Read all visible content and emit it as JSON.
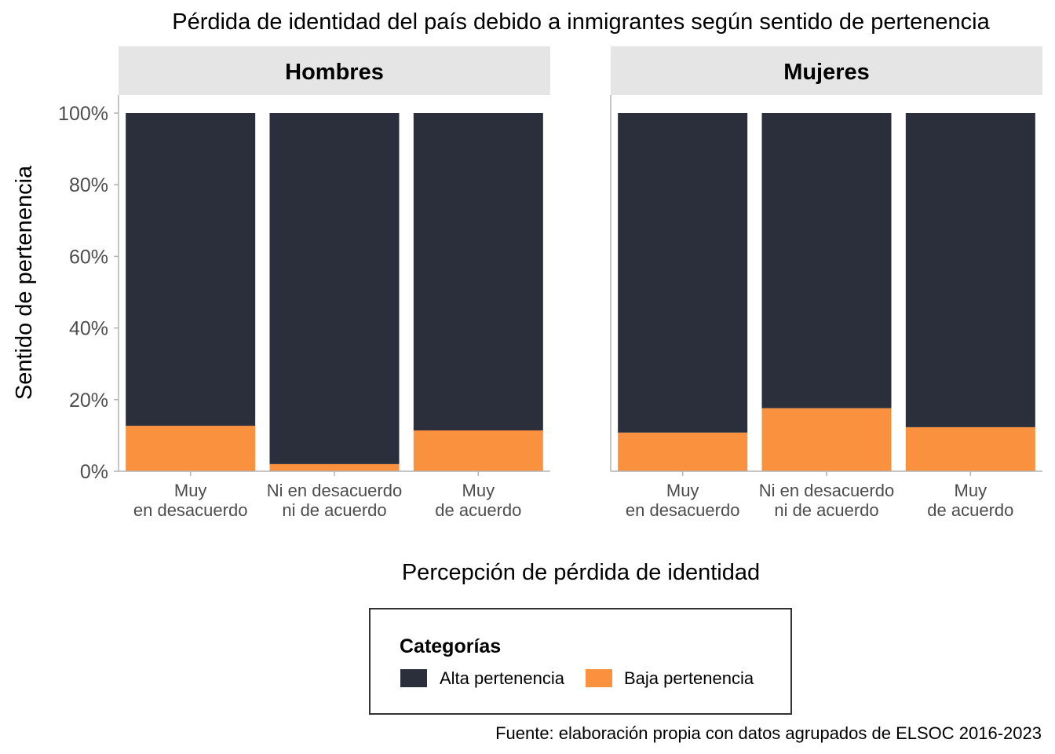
{
  "chart_data": {
    "type": "bar",
    "stacked": "percent",
    "title": "Pérdida de identidad del país debido a inmigrantes según sentido de pertenencia",
    "xlabel": "Percepción de pérdida de identidad",
    "ylabel": "Sentido de pertenencia",
    "ylim": [
      0,
      100
    ],
    "yticks": [
      "0%",
      "20%",
      "40%",
      "60%",
      "80%",
      "100%"
    ],
    "categories": [
      [
        "Muy",
        "en desacuerdo"
      ],
      [
        "Ni en desacuerdo",
        "ni de acuerdo"
      ],
      [
        "Muy",
        "de acuerdo"
      ]
    ],
    "legend": {
      "title": "Categorías",
      "position": "bottom",
      "entries": [
        {
          "label": "Alta pertenencia",
          "color": "#2b2f3b"
        },
        {
          "label": "Baja pertenencia",
          "color": "#fa913e"
        }
      ]
    },
    "facets": [
      {
        "name": "Hombres",
        "series": [
          {
            "name": "Baja pertenencia",
            "values": [
              12.7,
              2.0,
              11.4
            ]
          },
          {
            "name": "Alta pertenencia",
            "values": [
              87.3,
              98.0,
              88.6
            ]
          }
        ]
      },
      {
        "name": "Mujeres",
        "series": [
          {
            "name": "Baja pertenencia",
            "values": [
              10.8,
              17.6,
              12.3
            ]
          },
          {
            "name": "Alta pertenencia",
            "values": [
              89.2,
              82.4,
              87.7
            ]
          }
        ]
      }
    ],
    "caption": "Fuente: elaboración propia con datos agrupados de ELSOC 2016-2023",
    "colors": {
      "strip_background": "#e5e5e5",
      "axis_line": "#b3b3b3",
      "tick_text": "#4d4d4d"
    }
  }
}
